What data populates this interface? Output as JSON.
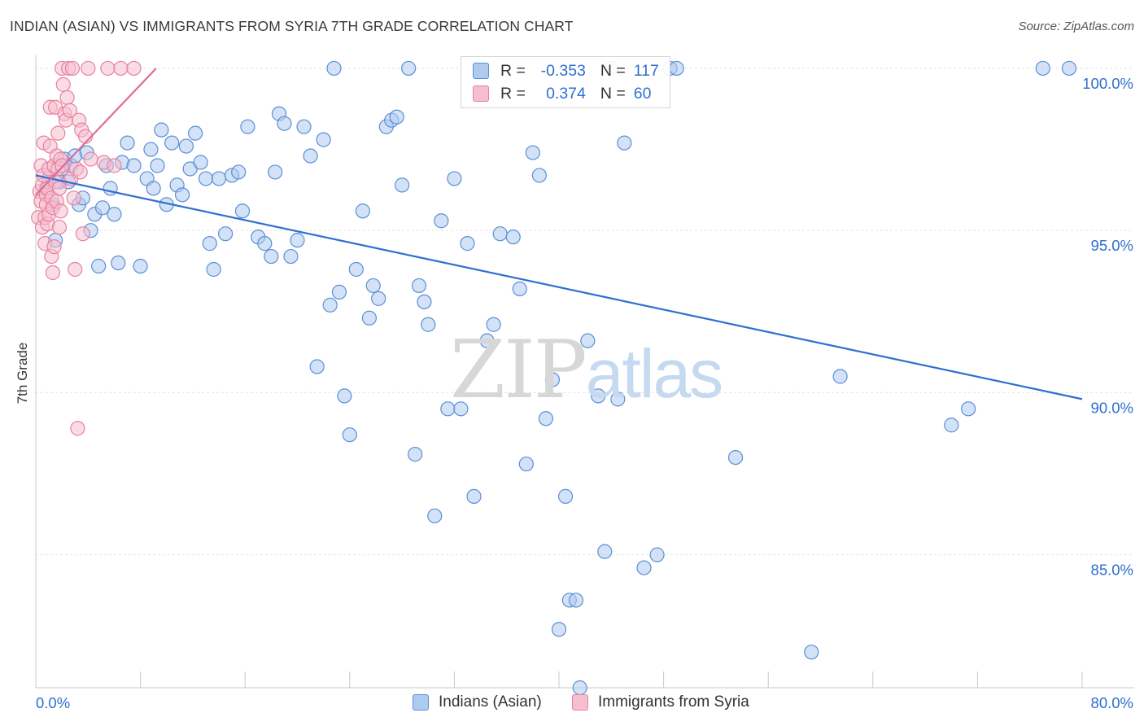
{
  "title": "INDIAN (ASIAN) VS IMMIGRANTS FROM SYRIA 7TH GRADE CORRELATION CHART",
  "source": "Source: ZipAtlas.com",
  "watermark": {
    "zip": "ZIP",
    "atlas": "atlas"
  },
  "colors": {
    "blue_fill": "#aecbef",
    "blue_stroke": "#5b8fd8",
    "blue_line": "#2f6fce",
    "pink_fill": "#f6bfd0",
    "pink_stroke": "#e8809f",
    "pink_line": "#e06b93",
    "axis_text": "#2f6fce",
    "grid": "#e3e3e3"
  },
  "stats": {
    "r_label": "R =",
    "n_label": "N =",
    "rows": [
      {
        "r": "-0.353",
        "n": "117"
      },
      {
        "r": "0.374",
        "n": "60"
      }
    ]
  },
  "legend": {
    "series1": "Indians (Asian)",
    "series2": "Immigrants from Syria"
  },
  "chart_data": {
    "type": "scatter",
    "title": "INDIAN (ASIAN) VS IMMIGRANTS FROM SYRIA 7TH GRADE CORRELATION CHART",
    "xlabel": "",
    "ylabel": "7th Grade",
    "xlim": [
      0,
      80
    ],
    "ylim": [
      80.9,
      100.3
    ],
    "x_tick_labels": [
      "0.0%",
      "80.0%"
    ],
    "y_ticks": [
      85,
      90,
      95,
      100
    ],
    "y_tick_labels": [
      "85.0%",
      "90.0%",
      "95.0%",
      "100.0%"
    ],
    "grid": true,
    "legend_position": "bottom",
    "series": [
      {
        "name": "Indians (Asian)",
        "trend": {
          "x": [
            0,
            80
          ],
          "y": [
            96.7,
            89.8
          ]
        },
        "x": [
          0.8,
          1.0,
          1.3,
          1.5,
          1.8,
          2.0,
          2.2,
          2.5,
          2.7,
          3.0,
          3.3,
          3.6,
          3.9,
          4.2,
          4.5,
          4.8,
          5.1,
          5.4,
          5.7,
          6.0,
          6.3,
          6.6,
          7.0,
          7.5,
          8.0,
          8.5,
          8.8,
          9.0,
          9.3,
          9.6,
          10.0,
          10.4,
          10.8,
          11.2,
          11.5,
          11.8,
          12.2,
          12.6,
          13.0,
          13.3,
          13.6,
          14.0,
          14.5,
          15.0,
          15.5,
          15.8,
          16.2,
          17.0,
          17.5,
          18.0,
          18.3,
          18.6,
          19.0,
          19.5,
          20.0,
          20.5,
          21.0,
          21.5,
          22.0,
          22.5,
          22.8,
          23.2,
          23.6,
          24.0,
          24.5,
          25.0,
          25.5,
          25.8,
          26.2,
          26.8,
          27.2,
          27.6,
          28.0,
          28.5,
          29.0,
          29.3,
          29.7,
          30.0,
          30.5,
          31.0,
          31.5,
          32.0,
          32.5,
          33.0,
          33.5,
          34.5,
          35.0,
          35.5,
          36.5,
          37.0,
          37.5,
          38.0,
          38.5,
          39.0,
          39.5,
          40.0,
          40.5,
          40.8,
          41.3,
          41.6,
          42.2,
          43.0,
          43.5,
          44.0,
          44.5,
          45.0,
          46.5,
          47.5,
          48.5,
          49.0,
          53.5,
          59.3,
          61.5,
          70.0,
          71.3,
          77.0,
          79.0
        ],
        "y": [
          96.3,
          96.6,
          95.8,
          94.7,
          96.5,
          96.9,
          97.2,
          96.5,
          97.0,
          97.3,
          95.8,
          96.0,
          97.4,
          95.0,
          95.5,
          93.9,
          95.7,
          97.0,
          96.3,
          95.5,
          94.0,
          97.1,
          97.7,
          97.0,
          93.9,
          96.6,
          97.5,
          96.3,
          97.0,
          98.1,
          95.8,
          97.7,
          96.4,
          96.1,
          97.6,
          96.9,
          98.0,
          97.1,
          96.6,
          94.6,
          93.8,
          96.6,
          94.9,
          96.7,
          96.8,
          95.6,
          98.2,
          94.8,
          94.6,
          94.2,
          96.8,
          98.6,
          98.3,
          94.2,
          94.7,
          98.2,
          97.3,
          90.8,
          97.8,
          92.7,
          100.0,
          93.1,
          89.9,
          88.7,
          93.8,
          95.6,
          92.3,
          93.3,
          92.9,
          98.2,
          98.4,
          98.5,
          96.4,
          100.0,
          88.1,
          93.3,
          92.8,
          92.1,
          86.2,
          95.3,
          89.5,
          96.6,
          89.5,
          94.6,
          86.8,
          91.6,
          92.1,
          94.9,
          94.8,
          93.2,
          87.8,
          97.4,
          96.7,
          89.2,
          90.4,
          82.7,
          86.8,
          83.6,
          83.6,
          80.9,
          91.6,
          89.9,
          85.1,
          100.0,
          89.8,
          97.7,
          84.6,
          85.0,
          100.0,
          100.0,
          88.0,
          82.0,
          90.5,
          89.0,
          89.5,
          100.0,
          100.0
        ]
      },
      {
        "name": "Immigrants from Syria",
        "trend": {
          "x": [
            0,
            9.2
          ],
          "y": [
            96.1,
            100.0
          ]
        },
        "x": [
          0.2,
          0.3,
          0.4,
          0.4,
          0.5,
          0.5,
          0.6,
          0.6,
          0.7,
          0.7,
          0.8,
          0.8,
          0.9,
          0.9,
          1.0,
          1.0,
          1.1,
          1.1,
          1.2,
          1.2,
          1.3,
          1.3,
          1.4,
          1.4,
          1.5,
          1.5,
          1.6,
          1.6,
          1.7,
          1.7,
          1.8,
          1.8,
          1.9,
          1.9,
          2.0,
          2.0,
          2.1,
          2.2,
          2.3,
          2.4,
          2.5,
          2.6,
          2.7,
          2.8,
          2.9,
          3.0,
          3.1,
          3.2,
          3.3,
          3.4,
          3.5,
          3.6,
          3.8,
          4.0,
          4.2,
          5.2,
          5.5,
          6.0,
          6.5,
          7.5
        ],
        "y": [
          95.4,
          96.2,
          95.9,
          97.0,
          96.4,
          95.1,
          96.7,
          97.7,
          94.6,
          95.4,
          96.1,
          95.8,
          96.3,
          95.2,
          96.9,
          95.5,
          98.8,
          97.6,
          94.2,
          96.0,
          95.7,
          93.7,
          97.0,
          94.5,
          98.8,
          96.5,
          97.3,
          95.9,
          96.9,
          98.0,
          95.1,
          96.3,
          97.2,
          95.6,
          100.0,
          97.0,
          99.5,
          98.6,
          98.4,
          99.1,
          100.0,
          98.7,
          96.6,
          100.0,
          96.0,
          93.8,
          96.9,
          88.9,
          98.4,
          96.8,
          98.1,
          94.9,
          97.9,
          100.0,
          97.2,
          97.1,
          100.0,
          97.0,
          100.0,
          100.0
        ]
      }
    ]
  }
}
